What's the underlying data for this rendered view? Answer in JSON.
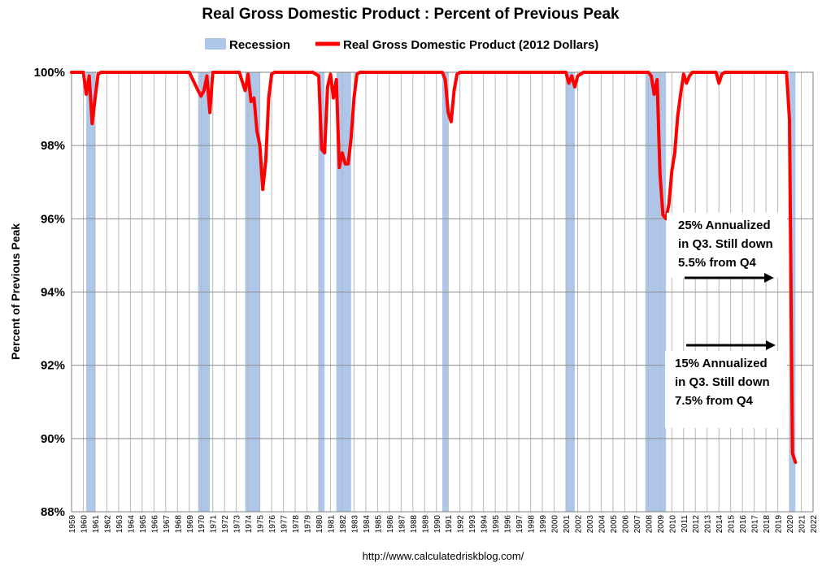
{
  "chart_data": {
    "type": "line",
    "title": "Real Gross Domestic Product : Percent of Previous Peak",
    "ylabel": "Percent of Previous Peak",
    "xlabel": "",
    "ylim": [
      88,
      100
    ],
    "xlim": [
      1959,
      2022
    ],
    "y_ticks": [
      "88%",
      "90%",
      "92%",
      "94%",
      "96%",
      "98%",
      "100%"
    ],
    "x_ticks": [
      "1959",
      "1960",
      "1961",
      "1962",
      "1963",
      "1964",
      "1965",
      "1966",
      "1967",
      "1968",
      "1969",
      "1970",
      "1971",
      "1972",
      "1973",
      "1974",
      "1975",
      "1976",
      "1977",
      "1978",
      "1979",
      "1980",
      "1981",
      "1982",
      "1983",
      "1984",
      "1985",
      "1986",
      "1987",
      "1988",
      "1989",
      "1990",
      "1991",
      "1992",
      "1993",
      "1994",
      "1995",
      "1996",
      "1997",
      "1998",
      "1999",
      "2000",
      "2001",
      "2002",
      "2003",
      "2004",
      "2005",
      "2006",
      "2007",
      "2008",
      "2009",
      "2010",
      "2011",
      "2012",
      "2013",
      "2014",
      "2015",
      "2016",
      "2017",
      "2018",
      "2019",
      "2020",
      "2021",
      "2022"
    ],
    "grid": true,
    "legend_position": "top",
    "series": [
      {
        "name": "Real Gross Domestic Product (2012 Dollars)",
        "color": "#ff0000",
        "x": [
          1959.0,
          1960.0,
          1960.25,
          1960.5,
          1960.75,
          1961.0,
          1961.25,
          1961.5,
          1962.0,
          1969.0,
          1969.75,
          1970.0,
          1970.25,
          1970.5,
          1970.75,
          1971.0,
          1971.25,
          1972.0,
          1973.25,
          1973.75,
          1974.0,
          1974.25,
          1974.5,
          1974.75,
          1975.0,
          1975.25,
          1975.5,
          1975.75,
          1976.0,
          1976.25,
          1979.5,
          1980.0,
          1980.25,
          1980.5,
          1980.75,
          1981.0,
          1981.25,
          1981.5,
          1981.75,
          1982.0,
          1982.25,
          1982.5,
          1982.75,
          1983.0,
          1983.25,
          1983.5,
          1983.75,
          1984.0,
          1990.5,
          1990.75,
          1991.0,
          1991.25,
          1991.5,
          1991.75,
          1992.0,
          2001.0,
          2001.25,
          2001.5,
          2001.75,
          2002.0,
          2002.5,
          2008.0,
          2008.25,
          2008.5,
          2008.75,
          2009.0,
          2009.25,
          2009.5,
          2009.75,
          2010.0,
          2010.25,
          2010.5,
          2010.75,
          2011.0,
          2011.25,
          2011.5,
          2011.75,
          2012.0,
          2013.75,
          2014.0,
          2014.25,
          2014.5,
          2019.75,
          2020.0,
          2020.25,
          2020.5
        ],
        "values": [
          100.0,
          100.0,
          99.4,
          99.9,
          98.6,
          99.3,
          99.95,
          100.0,
          100.0,
          100.0,
          99.5,
          99.35,
          99.5,
          99.9,
          98.9,
          100.0,
          100.0,
          100.0,
          100.0,
          99.5,
          99.95,
          99.2,
          99.3,
          98.4,
          98.0,
          96.8,
          97.6,
          99.3,
          99.95,
          100.0,
          100.0,
          99.9,
          97.9,
          97.8,
          99.6,
          99.95,
          99.3,
          99.8,
          97.4,
          97.8,
          97.5,
          97.5,
          98.2,
          99.3,
          99.95,
          100.0,
          100.0,
          100.0,
          100.0,
          99.8,
          98.9,
          98.65,
          99.5,
          99.95,
          100.0,
          100.0,
          99.7,
          99.9,
          99.6,
          99.9,
          100.0,
          100.0,
          99.9,
          99.4,
          99.8,
          97.2,
          96.1,
          96.0,
          96.4,
          97.3,
          97.8,
          98.8,
          99.4,
          99.95,
          99.7,
          99.9,
          100.0,
          100.0,
          100.0,
          99.7,
          99.95,
          100.0,
          100.0,
          98.7,
          89.6,
          89.35
        ]
      }
    ],
    "recessions": {
      "name": "Recession",
      "color": "#aec6ea",
      "periods": [
        [
          1960.25,
          1961.0
        ],
        [
          1969.75,
          1970.75
        ],
        [
          1973.75,
          1975.0
        ],
        [
          1980.0,
          1980.5
        ],
        [
          1981.5,
          1982.75
        ],
        [
          1990.5,
          1991.0
        ],
        [
          2001.0,
          2001.75
        ],
        [
          2007.75,
          2009.5
        ],
        [
          2020.0,
          2020.5
        ]
      ]
    },
    "annotations": [
      {
        "lines": [
          "25% Annualized",
          "in Q3.  Still down",
          "5.5% from Q4"
        ]
      },
      {
        "lines": [
          "15% Annualized",
          "in Q3.  Still down",
          "7.5% from Q4"
        ]
      }
    ],
    "source": "http://www.calculatedriskblog.com/"
  }
}
